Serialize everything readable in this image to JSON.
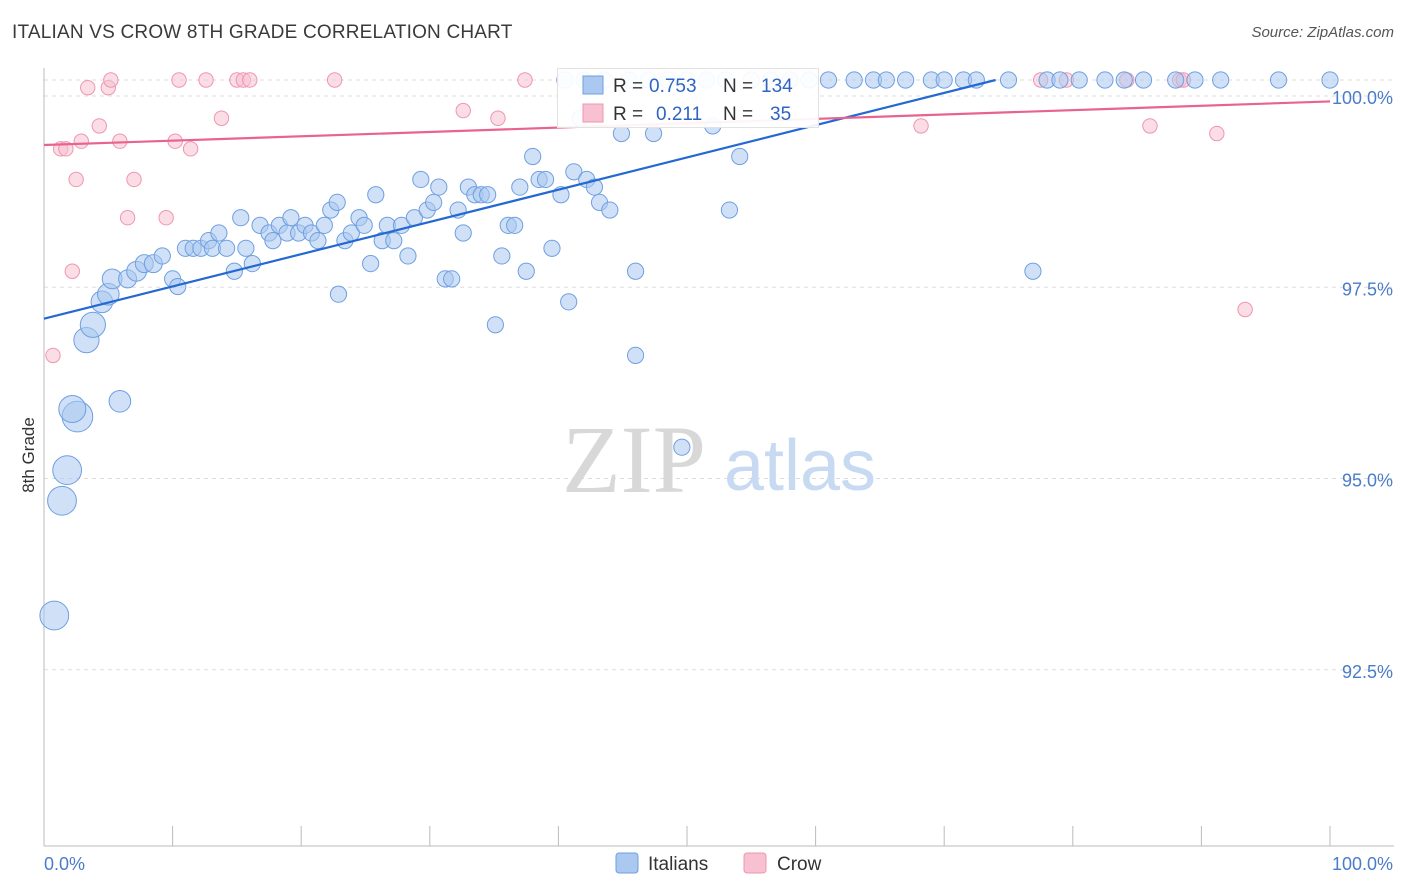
{
  "title": "ITALIAN VS CROW 8TH GRADE CORRELATION CHART",
  "source": "Source: ZipAtlas.com",
  "watermark": {
    "zip": "ZIP",
    "atlas": "atlas"
  },
  "colors": {
    "italians_fill": "#aac8f0",
    "italians_stroke": "#6e9fe0",
    "italians_line": "#2469d2",
    "crow_fill": "#f7c1d1",
    "crow_stroke": "#ef95b2",
    "crow_line": "#e8638e",
    "axis_label": "#4a7cc9",
    "grid": "#dddddd"
  },
  "stats": [
    {
      "series": "Italians",
      "r_label": "R =",
      "r_value": "0.753",
      "n_label": "N =",
      "n_value": "134"
    },
    {
      "series": "Crow",
      "r_label": "R =",
      "r_value": "0.211",
      "n_label": "N =",
      "n_value": "35"
    }
  ],
  "legend": [
    "Italians",
    "Crow"
  ],
  "chart_data": {
    "type": "scatter",
    "title": "ITALIAN VS CROW 8TH GRADE CORRELATION CHART",
    "xlabel": "",
    "ylabel": "8th Grade",
    "xlim": [
      0,
      100
    ],
    "ylim": [
      90.2,
      100.8
    ],
    "x_tick_labels": [
      "0.0%",
      "100.0%"
    ],
    "y_ticks": [
      92.5,
      95.0,
      97.5,
      100.0
    ],
    "y_tick_labels": [
      "92.5%",
      "95.0%",
      "97.5%",
      "100.0%"
    ],
    "grid": "horizontal dashed",
    "legend_position": "bottom-center",
    "series": [
      {
        "name": "Italians",
        "trend": {
          "x": [
            0,
            74
          ],
          "y": [
            96.88,
            100.0
          ]
        },
        "points": [
          [
            0.8,
            93.0,
            1.6
          ],
          [
            1.4,
            94.5,
            1.6
          ],
          [
            1.8,
            94.9,
            1.6
          ],
          [
            2.6,
            95.6,
            1.7
          ],
          [
            2.2,
            95.7,
            1.5
          ],
          [
            5.9,
            95.8,
            1.2
          ],
          [
            3.3,
            96.6,
            1.4
          ],
          [
            3.8,
            96.8,
            1.4
          ],
          [
            4.5,
            97.1,
            1.2
          ],
          [
            5.0,
            97.2,
            1.2
          ],
          [
            5.3,
            97.4,
            1.1
          ],
          [
            6.5,
            97.4,
            1.0
          ],
          [
            7.2,
            97.5,
            1.1
          ],
          [
            7.8,
            97.6,
            1.0
          ],
          [
            8.5,
            97.6,
            1.0
          ],
          [
            9.2,
            97.7,
            0.9
          ],
          [
            10.0,
            97.4,
            0.9
          ],
          [
            10.4,
            97.3,
            0.9
          ],
          [
            11.0,
            97.8,
            0.9
          ],
          [
            11.6,
            97.8,
            0.9
          ],
          [
            12.2,
            97.8,
            0.9
          ],
          [
            12.8,
            97.9,
            0.9
          ],
          [
            13.1,
            97.8,
            0.9
          ],
          [
            13.6,
            98.0,
            0.9
          ],
          [
            14.2,
            97.8,
            0.9
          ],
          [
            14.8,
            97.5,
            0.9
          ],
          [
            15.3,
            98.2,
            0.9
          ],
          [
            15.7,
            97.8,
            0.9
          ],
          [
            16.2,
            97.6,
            0.9
          ],
          [
            16.8,
            98.1,
            0.9
          ],
          [
            17.5,
            98.0,
            0.9
          ],
          [
            17.8,
            97.9,
            0.9
          ],
          [
            18.3,
            98.1,
            0.9
          ],
          [
            18.9,
            98.0,
            0.9
          ],
          [
            19.2,
            98.2,
            0.9
          ],
          [
            19.8,
            98.0,
            0.9
          ],
          [
            20.3,
            98.1,
            0.9
          ],
          [
            20.8,
            98.0,
            0.9
          ],
          [
            21.3,
            97.9,
            0.9
          ],
          [
            21.8,
            98.1,
            0.9
          ],
          [
            22.3,
            98.3,
            0.9
          ],
          [
            22.8,
            98.4,
            0.9
          ],
          [
            22.9,
            97.2,
            0.9
          ],
          [
            23.4,
            97.9,
            0.9
          ],
          [
            23.9,
            98.0,
            0.9
          ],
          [
            24.5,
            98.2,
            0.9
          ],
          [
            24.9,
            98.1,
            0.9
          ],
          [
            25.4,
            97.6,
            0.9
          ],
          [
            25.8,
            98.5,
            0.9
          ],
          [
            26.3,
            97.9,
            0.9
          ],
          [
            26.7,
            98.1,
            0.9
          ],
          [
            27.2,
            97.9,
            0.9
          ],
          [
            27.8,
            98.1,
            0.9
          ],
          [
            28.3,
            97.7,
            0.9
          ],
          [
            28.8,
            98.2,
            0.9
          ],
          [
            29.3,
            98.7,
            0.9
          ],
          [
            29.8,
            98.3,
            0.9
          ],
          [
            30.3,
            98.4,
            0.9
          ],
          [
            30.7,
            98.6,
            0.9
          ],
          [
            31.2,
            97.4,
            0.9
          ],
          [
            31.7,
            97.4,
            0.9
          ],
          [
            32.2,
            98.3,
            0.9
          ],
          [
            32.6,
            98.0,
            0.9
          ],
          [
            33.0,
            98.6,
            0.9
          ],
          [
            33.5,
            98.5,
            0.9
          ],
          [
            34.0,
            98.5,
            0.9
          ],
          [
            34.5,
            98.5,
            0.9
          ],
          [
            35.1,
            96.8,
            0.9
          ],
          [
            35.6,
            97.7,
            0.9
          ],
          [
            36.1,
            98.1,
            0.9
          ],
          [
            36.6,
            98.1,
            0.9
          ],
          [
            37.0,
            98.6,
            0.9
          ],
          [
            37.5,
            97.5,
            0.9
          ],
          [
            38.0,
            99.0,
            0.9
          ],
          [
            38.5,
            98.7,
            0.9
          ],
          [
            39.0,
            98.7,
            0.9
          ],
          [
            39.5,
            97.8,
            0.9
          ],
          [
            40.2,
            98.5,
            0.9
          ],
          [
            40.8,
            97.1,
            0.9
          ],
          [
            41.2,
            98.8,
            0.9
          ],
          [
            41.7,
            99.5,
            0.9
          ],
          [
            42.2,
            98.7,
            0.9
          ],
          [
            42.8,
            98.6,
            0.9
          ],
          [
            43.2,
            98.4,
            0.9
          ],
          [
            44.0,
            98.3,
            0.9
          ],
          [
            44.9,
            99.3,
            0.9
          ],
          [
            46.0,
            97.5,
            0.9
          ],
          [
            46.0,
            96.4,
            0.9
          ],
          [
            47.4,
            99.3,
            0.9
          ],
          [
            49.6,
            95.2,
            0.9
          ],
          [
            52.0,
            99.4,
            0.9
          ],
          [
            53.3,
            98.3,
            0.9
          ],
          [
            54.1,
            99.0,
            0.9
          ],
          [
            76.9,
            97.5,
            0.9
          ],
          [
            40.5,
            100.0,
            0.9
          ],
          [
            42.0,
            100.0,
            0.9
          ],
          [
            43.6,
            100.0,
            0.9
          ],
          [
            45.5,
            100.0,
            0.9
          ],
          [
            47.0,
            100.0,
            0.9
          ],
          [
            48.5,
            100.0,
            0.9
          ],
          [
            50.0,
            100.0,
            0.9
          ],
          [
            51.5,
            100.0,
            0.9
          ],
          [
            53.0,
            100.0,
            0.9
          ],
          [
            55.0,
            100.0,
            0.9
          ],
          [
            56.5,
            100.0,
            0.9
          ],
          [
            58.0,
            100.0,
            0.9
          ],
          [
            59.5,
            100.0,
            0.9
          ],
          [
            61.0,
            100.0,
            0.9
          ],
          [
            63.0,
            100.0,
            0.9
          ],
          [
            64.5,
            100.0,
            0.9
          ],
          [
            65.5,
            100.0,
            0.9
          ],
          [
            67.0,
            100.0,
            0.9
          ],
          [
            69.0,
            100.0,
            0.9
          ],
          [
            70.0,
            100.0,
            0.9
          ],
          [
            71.5,
            100.0,
            0.9
          ],
          [
            72.5,
            100.0,
            0.9
          ],
          [
            75.0,
            100.0,
            0.9
          ],
          [
            78.0,
            100.0,
            0.9
          ],
          [
            79.0,
            100.0,
            0.9
          ],
          [
            80.5,
            100.0,
            0.9
          ],
          [
            82.5,
            100.0,
            0.9
          ],
          [
            84.0,
            100.0,
            0.9
          ],
          [
            85.5,
            100.0,
            0.9
          ],
          [
            88.0,
            100.0,
            0.9
          ],
          [
            89.5,
            100.0,
            0.9
          ],
          [
            91.5,
            100.0,
            0.9
          ],
          [
            96.0,
            100.0,
            0.9
          ],
          [
            100.0,
            100.0,
            0.9
          ]
        ]
      },
      {
        "name": "Crow",
        "trend": {
          "x": [
            0,
            100
          ],
          "y": [
            99.15,
            99.72
          ]
        },
        "points": [
          [
            0.7,
            96.4,
            0.8
          ],
          [
            1.3,
            99.1,
            0.8
          ],
          [
            1.7,
            99.1,
            0.8
          ],
          [
            2.2,
            97.5,
            0.8
          ],
          [
            2.5,
            98.7,
            0.8
          ],
          [
            2.9,
            99.2,
            0.8
          ],
          [
            3.4,
            99.9,
            0.8
          ],
          [
            4.3,
            99.4,
            0.8
          ],
          [
            5.0,
            99.9,
            0.8
          ],
          [
            5.2,
            100.0,
            0.8
          ],
          [
            5.9,
            99.2,
            0.8
          ],
          [
            6.5,
            98.2,
            0.8
          ],
          [
            7.0,
            98.7,
            0.8
          ],
          [
            9.5,
            98.2,
            0.8
          ],
          [
            10.2,
            99.2,
            0.8
          ],
          [
            10.5,
            100.0,
            0.8
          ],
          [
            11.4,
            99.1,
            0.8
          ],
          [
            12.6,
            100.0,
            0.8
          ],
          [
            13.8,
            99.5,
            0.8
          ],
          [
            15.0,
            100.0,
            0.8
          ],
          [
            15.5,
            100.0,
            0.8
          ],
          [
            16.0,
            100.0,
            0.8
          ],
          [
            22.6,
            100.0,
            0.8
          ],
          [
            32.6,
            99.6,
            0.8
          ],
          [
            35.3,
            99.5,
            0.8
          ],
          [
            37.4,
            100.0,
            0.8
          ],
          [
            68.2,
            99.4,
            0.8
          ],
          [
            77.5,
            100.0,
            0.8
          ],
          [
            79.5,
            100.0,
            0.8
          ],
          [
            84.2,
            100.0,
            0.8
          ],
          [
            86.0,
            99.4,
            0.8
          ],
          [
            88.3,
            100.0,
            0.8
          ],
          [
            88.6,
            100.0,
            0.8
          ],
          [
            91.2,
            99.3,
            0.8
          ],
          [
            93.4,
            97.0,
            0.8
          ]
        ]
      }
    ]
  }
}
